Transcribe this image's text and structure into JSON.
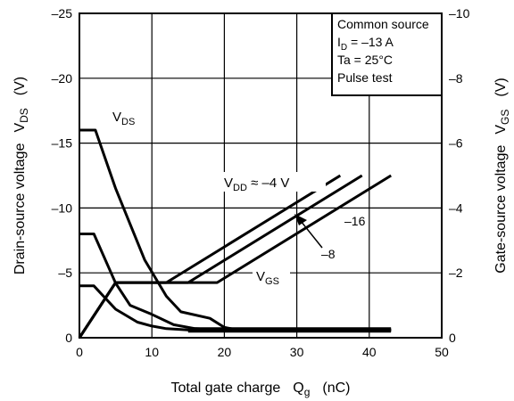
{
  "chart_data": {
    "type": "line",
    "xlabel": {
      "main": "Total gate charge",
      "symbol": "Q",
      "sub": "g",
      "unit": "(nC)"
    },
    "ylabel_left": {
      "main": "Drain-source voltage",
      "symbol": "V",
      "sub": "DS",
      "unit": "(V)"
    },
    "ylabel_right": {
      "main": "Gate-source voltage",
      "symbol": "V",
      "sub": "GS",
      "unit": "(V)"
    },
    "xlim": [
      0,
      50
    ],
    "ylim_left": [
      0,
      -25
    ],
    "ylim_right": [
      0,
      -10
    ],
    "x_ticks": [
      "0",
      "10",
      "20",
      "30",
      "40",
      "50"
    ],
    "y_left_ticks": [
      "0",
      "–5",
      "–10",
      "–15",
      "–20",
      "–25"
    ],
    "y_right_ticks": [
      "0",
      "–2",
      "–4",
      "–6",
      "–8",
      "–10"
    ],
    "grid": true,
    "conditions": [
      "Common source",
      "I_D = –13 A",
      "Ta = 25°C",
      "Pulse test"
    ],
    "series_VDS": [
      {
        "name": "–16",
        "x": [
          0,
          2.2,
          5,
          9,
          12,
          14,
          18,
          20,
          22,
          43
        ],
        "y": [
          -16,
          -16,
          -11.5,
          -6,
          -3.2,
          -2,
          -1.5,
          -0.8,
          -0.6,
          -0.6
        ]
      },
      {
        "name": "–8",
        "x": [
          0,
          2,
          5,
          7,
          10,
          13,
          16,
          20,
          43
        ],
        "y": [
          -8,
          -8,
          -4.2,
          -2.5,
          -1.8,
          -1,
          -0.7,
          -0.6,
          -0.6
        ]
      },
      {
        "name": "–4",
        "x": [
          0,
          2,
          5,
          8,
          10,
          12,
          15,
          20,
          43
        ],
        "y": [
          -4,
          -4,
          -2.2,
          -1.2,
          -0.9,
          -0.7,
          -0.6,
          -0.6,
          -0.6
        ]
      }
    ],
    "series_VGS": [
      {
        "name": "–4",
        "x": [
          0,
          5,
          12,
          36
        ],
        "y": [
          0,
          -1.7,
          -1.7,
          -5
        ]
      },
      {
        "name": "–8",
        "x": [
          0,
          5,
          15,
          39
        ],
        "y": [
          0,
          -1.7,
          -1.7,
          -5
        ]
      },
      {
        "name": "–16",
        "x": [
          0,
          5,
          19,
          43
        ],
        "y": [
          0,
          -1.7,
          -1.7,
          -5
        ]
      }
    ],
    "annotations": {
      "vds_label": {
        "main": "V",
        "sub": "DS"
      },
      "vgs_label": {
        "main": "V",
        "sub": "GS"
      },
      "vdd_label": {
        "main": "V",
        "sub": "DD",
        "rest": " ≈ –4 V"
      },
      "label_8": "–8",
      "label_16": "–16"
    }
  }
}
